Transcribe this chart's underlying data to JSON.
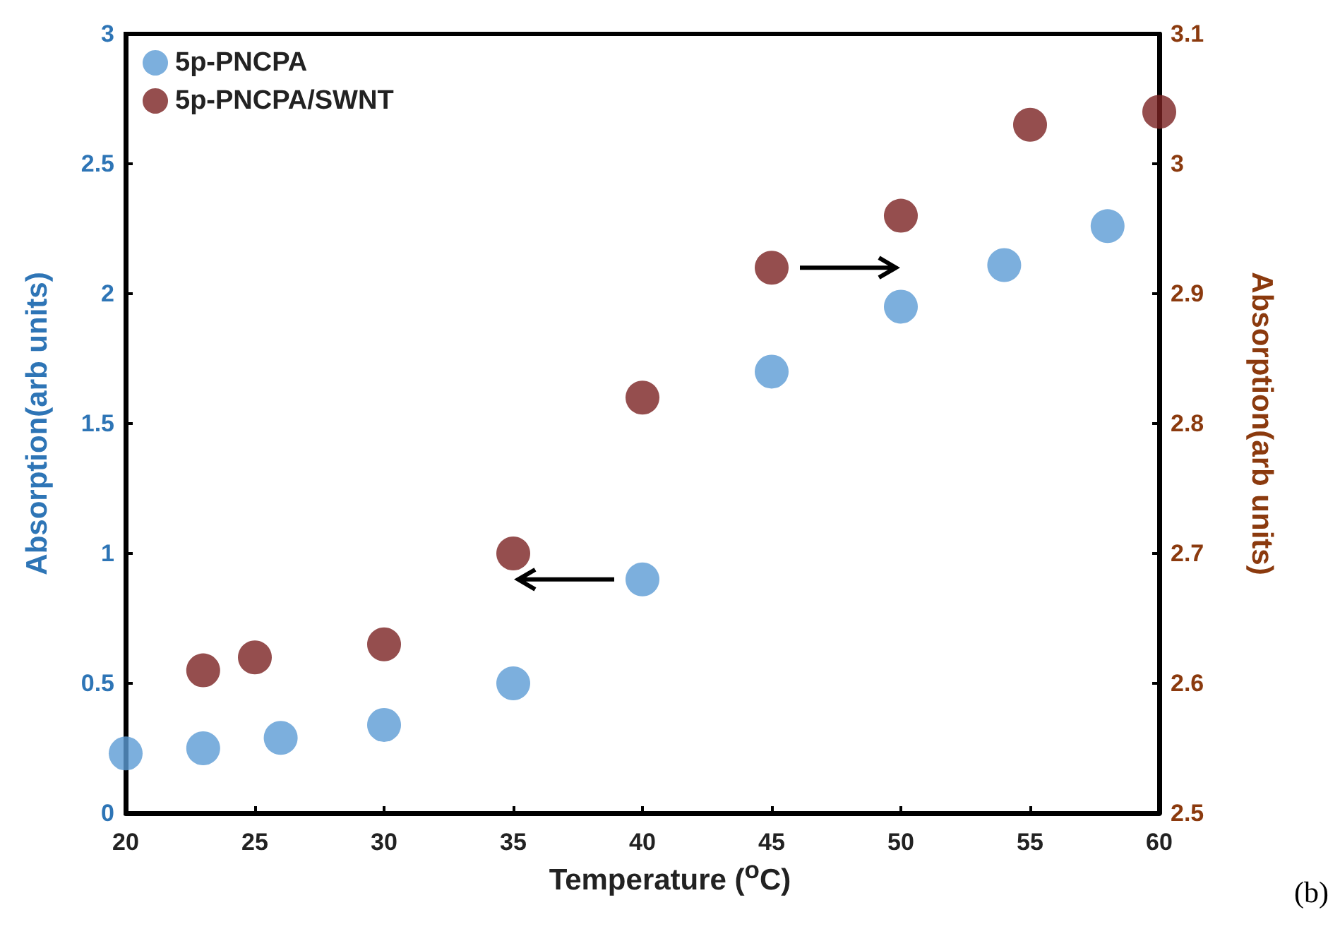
{
  "chart_data": {
    "type": "scatter",
    "xlabel": "Temperature ($^{o}$C)",
    "ylabel": "Absorption(arb units)",
    "y2label": "Absorption(arb units)",
    "series": [
      {
        "name": "5p-PNCPA",
        "color": "#5b9bd5",
        "x": [
          20,
          23,
          26,
          30,
          35,
          40,
          45,
          50,
          54,
          58
        ],
        "values": [
          0.23,
          0.25,
          0.29,
          0.34,
          0.5,
          0.9,
          1.7,
          1.95,
          2.11,
          2.26
        ]
      },
      {
        "name": "5p-PNCPA/SWNT",
        "color": "#7b2222",
        "axis": "y2",
        "x": [
          23,
          25,
          30,
          35,
          40,
          45,
          50,
          55,
          60
        ],
        "values": [
          2.61,
          2.62,
          2.63,
          2.7,
          2.82,
          2.92,
          2.96,
          3.03,
          3.04
        ]
      }
    ],
    "xlim": [
      20,
      60
    ],
    "xticks": [
      20,
      25,
      30,
      35,
      40,
      45,
      50,
      55,
      60
    ],
    "ylim": [
      0,
      3
    ],
    "yticks": [
      0,
      0.5,
      1,
      1.5,
      2,
      2.5,
      3
    ],
    "y2lim": [
      2.5,
      3.1
    ],
    "y2ticks": [
      2.5,
      2.6,
      2.7,
      2.8,
      2.9,
      3,
      3.1
    ],
    "annotations": [
      "(b)"
    ],
    "legend": "top left",
    "marker": "circle",
    "grid": false
  }
}
